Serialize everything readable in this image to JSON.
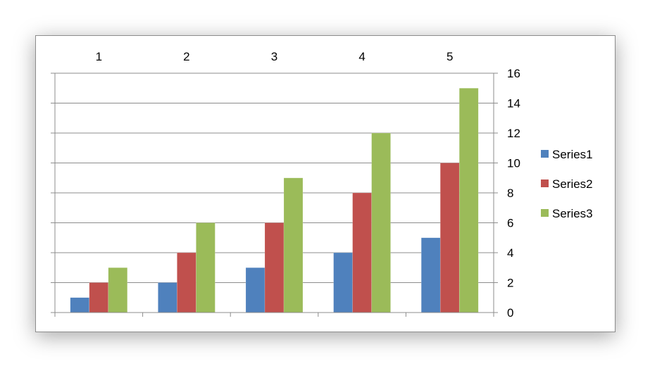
{
  "chart_data": {
    "type": "bar",
    "categories": [
      "1",
      "2",
      "3",
      "4",
      "5"
    ],
    "series": [
      {
        "name": "Series1",
        "values": [
          1,
          2,
          3,
          4,
          5
        ]
      },
      {
        "name": "Series2",
        "values": [
          2,
          4,
          6,
          8,
          10
        ]
      },
      {
        "name": "Series3",
        "values": [
          3,
          6,
          9,
          12,
          15
        ]
      }
    ],
    "ylim": [
      0,
      16
    ],
    "y_ticks": [
      "0",
      "2",
      "4",
      "6",
      "8",
      "10",
      "12",
      "14",
      "16"
    ],
    "y_axis_side": "right",
    "category_axis_side": "top",
    "grid": true,
    "legend_position": "right",
    "colors": [
      "#4F81BD",
      "#C0504D",
      "#9BBB59"
    ]
  }
}
